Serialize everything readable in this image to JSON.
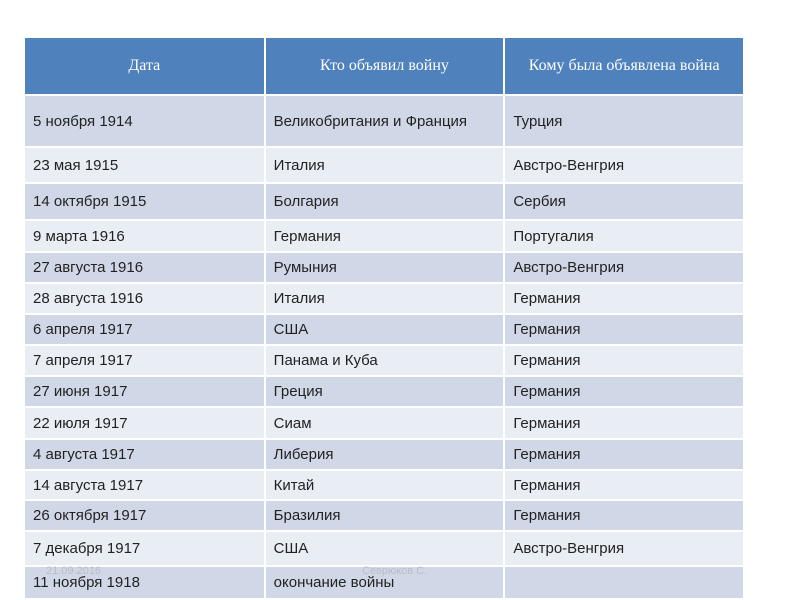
{
  "table": {
    "header": [
      "Дата",
      "Кто объявил войну",
      "Кому была объявлена война"
    ],
    "rows": [
      [
        "5 ноября 1914",
        "Великобритания и Франция",
        "Турция"
      ],
      [
        "23 мая 1915",
        "Италия",
        "Австро-Венгрия"
      ],
      [
        "14 октября 1915",
        "Болгария",
        "Сербия"
      ],
      [
        "9 марта 1916",
        "Германия",
        "Португалия"
      ],
      [
        "27 августа 1916",
        "Румыния",
        "Австро-Венгрия"
      ],
      [
        "28 августа 1916",
        "Италия",
        "Германия"
      ],
      [
        "6 апреля 1917",
        "США",
        "Германия"
      ],
      [
        "7 апреля 1917",
        "Панама и Куба",
        "Германия"
      ],
      [
        "27 июня 1917",
        "Греция",
        "Германия"
      ],
      [
        "22 июля 1917",
        "Сиам",
        "Германия"
      ],
      [
        "4 августа 1917",
        "Либерия",
        "Германия"
      ],
      [
        "14 августа 1917",
        "Китай",
        "Германия"
      ],
      [
        "26 октября 1917",
        "Бразилия",
        "Германия"
      ],
      [
        "7 декабря 1917",
        "США",
        "Австро-Венгрия"
      ],
      [
        "11 ноября 1918",
        "окончание войны"
      ]
    ]
  },
  "footer": {
    "date": "21.09.2016",
    "author": "Севрюков С."
  }
}
